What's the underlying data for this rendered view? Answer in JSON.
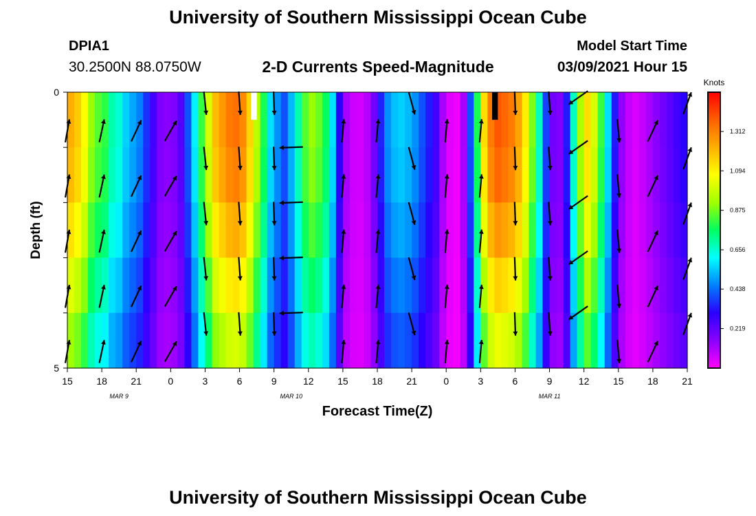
{
  "header": {
    "title": "University of Southern Mississippi Ocean Cube",
    "station_id": "DPIA1",
    "station_coords": "30.2500N 88.0750W",
    "chart_title": "2-D Currents Speed-Magnitude",
    "model_label": "Model Start Time",
    "model_time": "03/09/2021 Hour 15"
  },
  "footer": {
    "title": "University of Southern Mississippi Ocean Cube"
  },
  "chart_data": {
    "type": "heatmap",
    "title": "2-D Currents Speed-Magnitude",
    "xlabel": "Forecast Time(Z)",
    "ylabel": "Depth (ft)",
    "x_hours_range": [
      0,
      54
    ],
    "ylim": [
      0,
      5
    ],
    "x_ticks": [
      "15",
      "18",
      "21",
      "0",
      "3",
      "6",
      "9",
      "12",
      "15",
      "18",
      "21",
      "0",
      "3",
      "6",
      "9",
      "12",
      "15",
      "18",
      "21"
    ],
    "y_ticks": [
      "0",
      "5"
    ],
    "date_labels": [
      {
        "label": "MAR 9",
        "tick_index": 1.5
      },
      {
        "label": "MAR 10",
        "tick_index": 6.5
      },
      {
        "label": "MAR 11",
        "tick_index": 14
      }
    ],
    "colorbar": {
      "unit": "Knots",
      "range": [
        0,
        1.53
      ],
      "ticks": [
        "1.312",
        "1.094",
        "0.875",
        "0.656",
        "0.438",
        "0.219"
      ],
      "tick_values": [
        1.312,
        1.094,
        0.875,
        0.656,
        0.438,
        0.219
      ],
      "colors": [
        "#ff00ff",
        "#8a00ff",
        "#2a00ff",
        "#0080ff",
        "#00ffff",
        "#00ff60",
        "#a0ff00",
        "#ffff00",
        "#ffb000",
        "#ff6000",
        "#ff0000"
      ]
    },
    "depth_bands": [
      0,
      1,
      2,
      3,
      4,
      5
    ],
    "speed_knots_by_hour": [
      1.28,
      1.22,
      1.12,
      0.95,
      0.88,
      0.84,
      0.72,
      0.68,
      0.58,
      0.53,
      0.48,
      0.38,
      0.28,
      0.18,
      0.16,
      0.18,
      0.25,
      0.42,
      0.62,
      0.85,
      1.05,
      1.25,
      1.32,
      1.38,
      1.4,
      1.35,
      1.2,
      1.0,
      0.82,
      0.6,
      0.5,
      0.42,
      0.55,
      0.72,
      0.88,
      0.95,
      0.9,
      0.8,
      0.6,
      0.32,
      0.12,
      0.07,
      0.06,
      0.1,
      0.2,
      0.36,
      0.5,
      0.56,
      0.58,
      0.55,
      0.5,
      0.42,
      0.35,
      0.28,
      0.12,
      0.04,
      0.02,
      0.12,
      0.42,
      0.82,
      1.18,
      1.38,
      1.45,
      1.42,
      1.38,
      1.3,
      1.15,
      0.92,
      0.7,
      0.4,
      0.2,
      0.18,
      0.35,
      0.7,
      0.98,
      1.18,
      1.05,
      0.85,
      0.6,
      0.35,
      0.15,
      0.08,
      0.05,
      0.08,
      0.12,
      0.16,
      0.2,
      0.24,
      0.28,
      0.32
    ],
    "depth_factor": [
      0.96,
      0.94,
      0.88,
      0.8,
      0.72
    ],
    "gaps": [
      {
        "hour_from": 16.0,
        "hour_to": 16.5,
        "depth_to": 0.5,
        "color": "#ffffff"
      },
      {
        "hour_from": 37.0,
        "hour_to": 37.5,
        "depth_to": 0.5,
        "color": "#000000"
      }
    ],
    "vectors": [
      {
        "hour": 0,
        "direction_deg": 10,
        "depths": [
          0.7,
          1.7,
          2.7,
          3.7,
          4.7
        ]
      },
      {
        "hour": 3,
        "direction_deg": 12,
        "depths": [
          0.7,
          1.7,
          2.7,
          3.7,
          4.7
        ]
      },
      {
        "hour": 6,
        "direction_deg": 25,
        "depths": [
          0.7,
          1.7,
          2.7,
          3.7,
          4.7
        ]
      },
      {
        "hour": 9,
        "direction_deg": 30,
        "depths": [
          0.7,
          1.7,
          2.7,
          3.7,
          4.7
        ]
      },
      {
        "hour": 12,
        "direction_deg": 174,
        "depths": [
          0.2,
          1.2,
          2.2,
          3.2,
          4.2
        ]
      },
      {
        "hour": 15,
        "direction_deg": 176,
        "depths": [
          0.2,
          1.2,
          2.2,
          3.2,
          4.2
        ]
      },
      {
        "hour": 18,
        "direction_deg": 178,
        "depths": [
          0.2,
          1.2,
          2.2,
          3.2,
          4.2
        ]
      },
      {
        "hour": 19.5,
        "direction_deg": 268,
        "depths": [
          1.0,
          2.0,
          3.0,
          4.0
        ]
      },
      {
        "hour": 24,
        "direction_deg": 5,
        "depths": [
          0.7,
          1.7,
          2.7,
          3.7,
          4.7
        ]
      },
      {
        "hour": 27,
        "direction_deg": 5,
        "depths": [
          0.7,
          1.7,
          2.7,
          3.7,
          4.7
        ]
      },
      {
        "hour": 30,
        "direction_deg": 165,
        "depths": [
          0.2,
          1.2,
          2.2,
          3.2,
          4.2
        ]
      },
      {
        "hour": 33,
        "direction_deg": 5,
        "depths": [
          0.7,
          1.7,
          2.7,
          3.7,
          4.7
        ]
      },
      {
        "hour": 36,
        "direction_deg": 5,
        "depths": [
          0.7,
          1.7,
          2.7,
          3.7,
          4.7
        ]
      },
      {
        "hour": 39,
        "direction_deg": 178,
        "depths": [
          0.2,
          1.2,
          2.2,
          3.2,
          4.2
        ]
      },
      {
        "hour": 42,
        "direction_deg": 176,
        "depths": [
          0.2,
          1.2,
          2.2,
          3.2,
          4.2
        ]
      },
      {
        "hour": 44.5,
        "direction_deg": 235,
        "depths": [
          0.1,
          1.0,
          2.0,
          3.0,
          4.0
        ]
      },
      {
        "hour": 48,
        "direction_deg": 175,
        "depths": [
          0.7,
          1.7,
          2.7,
          3.7,
          4.7
        ]
      },
      {
        "hour": 51,
        "direction_deg": 25,
        "depths": [
          0.7,
          1.7,
          2.7,
          3.7,
          4.7
        ]
      },
      {
        "hour": 54,
        "direction_deg": 20,
        "depths": [
          0.2,
          1.2,
          2.2,
          3.2,
          4.2
        ]
      }
    ]
  }
}
